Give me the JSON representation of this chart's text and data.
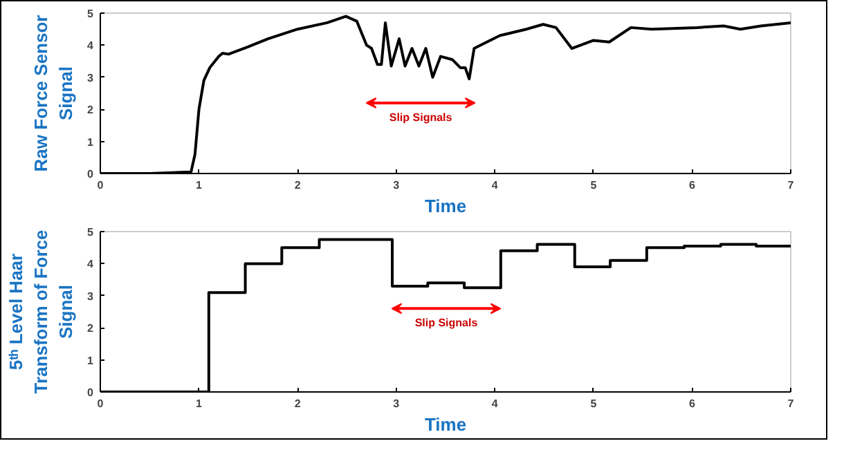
{
  "chart_data": [
    {
      "type": "line",
      "ylabel": "Raw Force Sensor Signal",
      "xlabel": "Time",
      "xlim": [
        0,
        7
      ],
      "ylim": [
        0,
        5
      ],
      "xticks": [
        0,
        1,
        2,
        3,
        4,
        5,
        6,
        7
      ],
      "yticks": [
        0,
        1,
        2,
        3,
        4,
        5
      ],
      "grid": false,
      "annotations": [
        "Slip Signals"
      ],
      "series": [
        {
          "color": "#000000",
          "x": [
            0,
            0.5,
            0.92,
            0.96,
            1.0,
            1.05,
            1.11,
            1.2,
            1.24,
            1.3,
            1.5,
            1.7,
            2.0,
            2.3,
            2.49,
            2.6,
            2.7,
            2.75,
            2.81,
            2.85,
            2.89,
            2.95,
            3.03,
            3.09,
            3.16,
            3.23,
            3.3,
            3.37,
            3.45,
            3.57,
            3.65,
            3.7,
            3.74,
            3.79,
            4.05,
            4.32,
            4.49,
            4.62,
            4.78,
            5.0,
            5.16,
            5.38,
            5.59,
            6.05,
            6.32,
            6.49,
            6.7,
            7.0
          ],
          "values": [
            0,
            0,
            0.05,
            0.6,
            2.0,
            2.9,
            3.3,
            3.65,
            3.75,
            3.72,
            3.95,
            4.2,
            4.5,
            4.7,
            4.9,
            4.75,
            4.0,
            3.9,
            3.4,
            3.4,
            4.7,
            3.35,
            4.2,
            3.35,
            3.9,
            3.35,
            3.9,
            3.0,
            3.65,
            3.55,
            3.3,
            3.3,
            2.95,
            3.9,
            4.3,
            4.5,
            4.65,
            4.55,
            3.9,
            4.15,
            4.1,
            4.55,
            4.5,
            4.55,
            4.6,
            4.5,
            4.6,
            4.7
          ]
        }
      ]
    },
    {
      "type": "step",
      "ylabel": "5ᵗʰ Level Haar Transform of Force Signal",
      "xlabel": "Time",
      "xlim": [
        0,
        7
      ],
      "ylim": [
        0,
        5
      ],
      "xticks": [
        0,
        1,
        2,
        3,
        4,
        5,
        6,
        7
      ],
      "yticks": [
        0,
        1,
        2,
        3,
        4,
        5
      ],
      "grid": false,
      "annotations": [
        "Slip Signals"
      ],
      "series": [
        {
          "color": "#000000",
          "x": [
            0,
            1.1,
            1.47,
            1.84,
            2.22,
            2.96,
            3.32,
            3.69,
            4.06,
            4.43,
            4.81,
            5.17,
            5.54,
            5.92,
            6.29,
            6.65,
            7.0
          ],
          "values": [
            0,
            3.1,
            4.0,
            4.5,
            4.75,
            3.3,
            3.4,
            3.25,
            4.4,
            4.6,
            3.9,
            4.1,
            4.5,
            4.55,
            4.6,
            4.55,
            4.55
          ]
        }
      ]
    }
  ]
}
